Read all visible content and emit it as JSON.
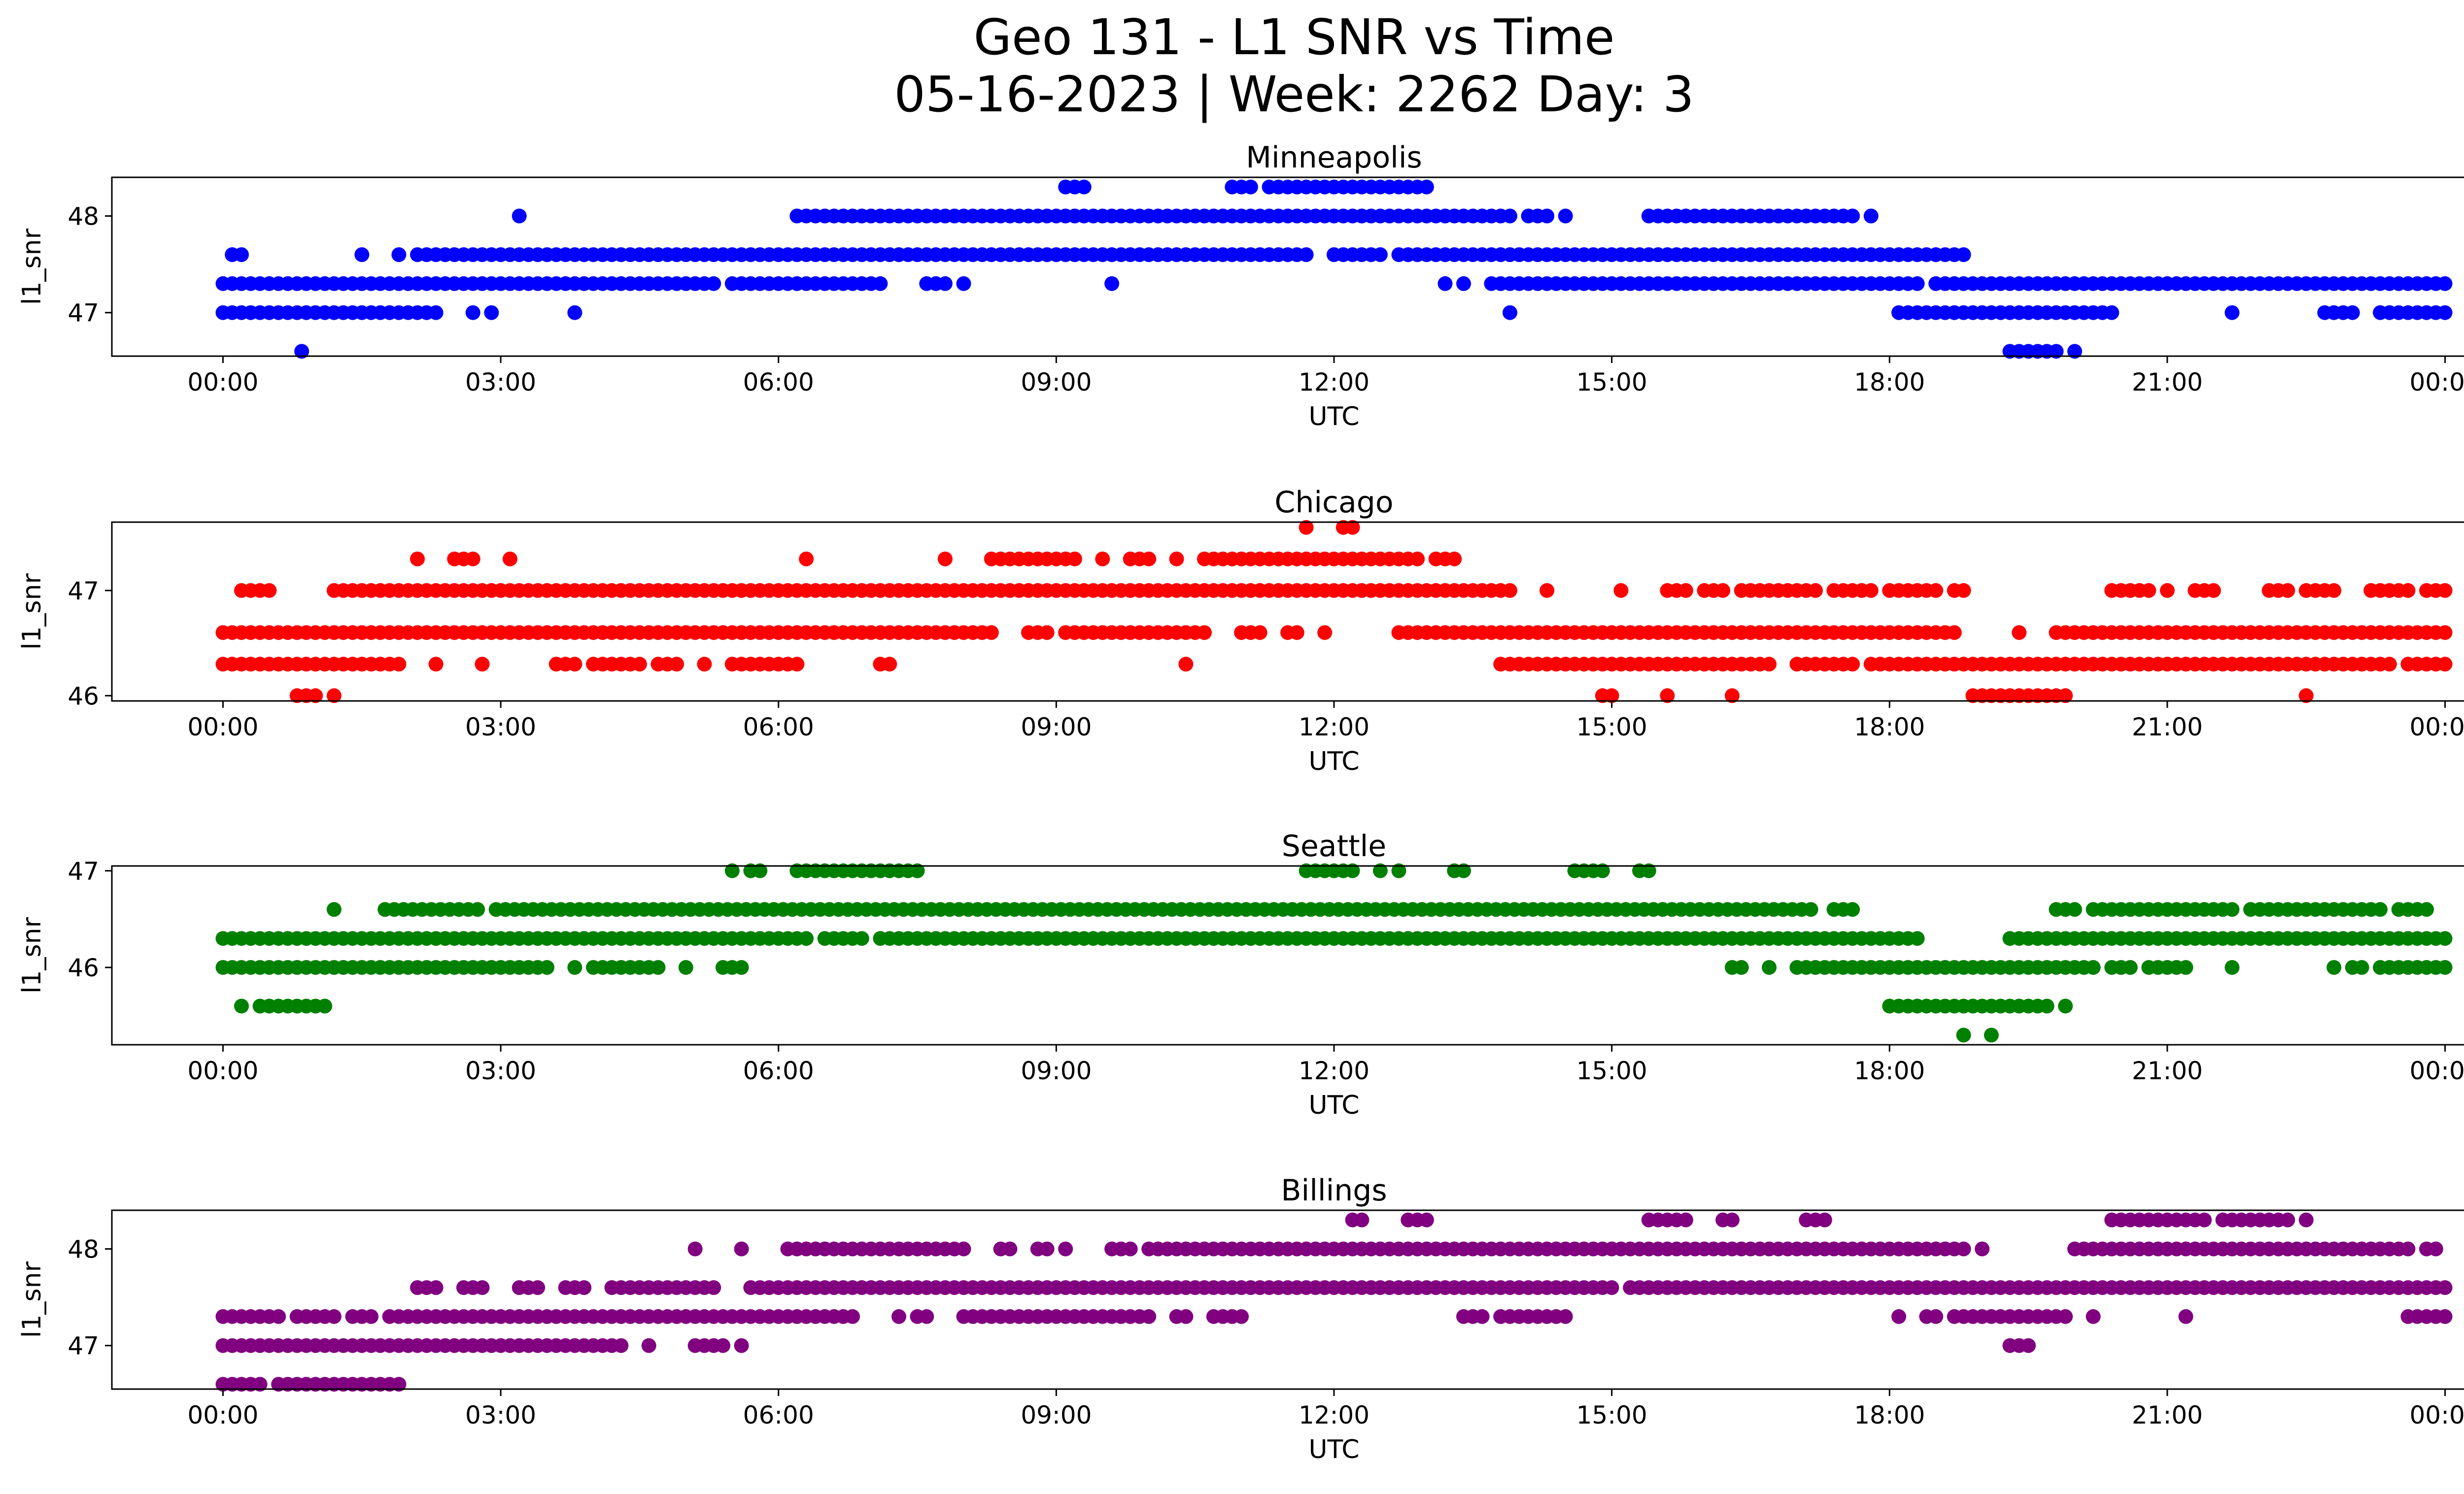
{
  "title_line1": "Geo 131 - L1 SNR vs Time",
  "title_line2": "05-16-2023 | Week: 2262 Day: 3",
  "chart_data": [
    {
      "type": "scatter",
      "title": "Minneapolis",
      "xlabel": "UTC",
      "ylabel": "l1_snr",
      "color": "#0000ff",
      "xticks": [
        "00:00",
        "03:00",
        "06:00",
        "09:00",
        "12:00",
        "15:00",
        "18:00",
        "21:00",
        "00:00"
      ],
      "yticks": [
        47,
        48
      ],
      "xlim": [
        -1.2,
        25.2
      ],
      "ylim": [
        46.55,
        48.4
      ],
      "levels": [
        {
          "y": 48.3,
          "ranges": [
            [
              9.1,
              9.3
            ],
            [
              10.9,
              11.1
            ],
            [
              11.3,
              11.5
            ],
            [
              11.6,
              13.0
            ]
          ]
        },
        {
          "y": 48.0,
          "ranges": [
            [
              3.2,
              3.2
            ],
            [
              6.2,
              13.9
            ],
            [
              14.1,
              14.3
            ],
            [
              14.5,
              14.5
            ],
            [
              15.4,
              16.6
            ],
            [
              16.7,
              17.6
            ],
            [
              17.8,
              17.8
            ]
          ]
        },
        {
          "y": 47.6,
          "ranges": [
            [
              0.1,
              0.25
            ],
            [
              1.5,
              1.5
            ],
            [
              1.9,
              1.9
            ],
            [
              2.1,
              11.7
            ],
            [
              12.0,
              12.5
            ],
            [
              12.7,
              17.4
            ],
            [
              17.5,
              18.8
            ]
          ]
        },
        {
          "y": 47.3,
          "ranges": [
            [
              0.0,
              5.3
            ],
            [
              5.5,
              7.1
            ],
            [
              7.6,
              7.8
            ],
            [
              8.0,
              8.0
            ],
            [
              9.6,
              9.6
            ],
            [
              13.2,
              13.2
            ],
            [
              13.4,
              13.4
            ],
            [
              13.7,
              18.3
            ],
            [
              18.5,
              24.0
            ]
          ]
        },
        {
          "y": 47.0,
          "ranges": [
            [
              0.0,
              2.3
            ],
            [
              2.7,
              2.7
            ],
            [
              2.9,
              2.9
            ],
            [
              3.8,
              3.8
            ],
            [
              13.9,
              13.9
            ],
            [
              18.1,
              20.4
            ],
            [
              21.7,
              21.7
            ],
            [
              22.7,
              23.0
            ],
            [
              23.3,
              24.0
            ]
          ]
        },
        {
          "y": 46.6,
          "ranges": [
            [
              0.85,
              0.85
            ],
            [
              19.3,
              19.8
            ],
            [
              20.0,
              20.0
            ]
          ]
        }
      ]
    },
    {
      "type": "scatter",
      "title": "Chicago",
      "xlabel": "UTC",
      "ylabel": "l1_snr",
      "color": "#ff0000",
      "xticks": [
        "00:00",
        "03:00",
        "06:00",
        "09:00",
        "12:00",
        "15:00",
        "18:00",
        "21:00",
        "00:00"
      ],
      "yticks": [
        46,
        47
      ],
      "xlim": [
        -1.2,
        25.2
      ],
      "ylim": [
        45.95,
        47.65
      ],
      "levels": [
        {
          "y": 47.6,
          "ranges": [
            [
              11.7,
              11.7
            ],
            [
              12.1,
              12.2
            ]
          ]
        },
        {
          "y": 47.3,
          "ranges": [
            [
              2.1,
              2.1
            ],
            [
              2.5,
              2.7
            ],
            [
              3.1,
              3.1
            ],
            [
              6.3,
              6.3
            ],
            [
              7.8,
              7.8
            ],
            [
              8.3,
              9.2
            ],
            [
              9.5,
              9.5
            ],
            [
              9.8,
              10.0
            ],
            [
              10.3,
              10.3
            ],
            [
              10.6,
              12.9
            ],
            [
              13.1,
              13.3
            ]
          ]
        },
        {
          "y": 47.0,
          "ranges": [
            [
              0.2,
              0.5
            ],
            [
              1.2,
              1.8
            ],
            [
              1.9,
              13.9
            ],
            [
              14.3,
              14.3
            ],
            [
              15.1,
              15.1
            ],
            [
              15.6,
              15.8
            ],
            [
              16.0,
              16.2
            ],
            [
              16.4,
              17.2
            ],
            [
              17.4,
              17.8
            ],
            [
              18.0,
              18.5
            ],
            [
              18.7,
              18.8
            ],
            [
              20.4,
              20.8
            ],
            [
              21.0,
              21.0
            ],
            [
              21.3,
              21.5
            ],
            [
              22.1,
              22.3
            ],
            [
              22.5,
              22.8
            ],
            [
              23.2,
              23.6
            ],
            [
              23.8,
              24.0
            ]
          ]
        },
        {
          "y": 46.6,
          "ranges": [
            [
              0.0,
              8.3
            ],
            [
              8.7,
              8.9
            ],
            [
              9.1,
              10.6
            ],
            [
              11.0,
              11.2
            ],
            [
              11.5,
              11.6
            ],
            [
              11.9,
              11.9
            ],
            [
              12.7,
              18.7
            ],
            [
              19.4,
              19.4
            ],
            [
              19.8,
              24.0
            ]
          ]
        },
        {
          "y": 46.3,
          "ranges": [
            [
              0.0,
              1.5
            ],
            [
              1.6,
              1.9
            ],
            [
              2.3,
              2.3
            ],
            [
              2.8,
              2.8
            ],
            [
              3.6,
              3.8
            ],
            [
              4.0,
              4.5
            ],
            [
              4.7,
              4.9
            ],
            [
              5.2,
              5.2
            ],
            [
              5.5,
              6.0
            ],
            [
              6.1,
              6.2
            ],
            [
              7.1,
              7.2
            ],
            [
              10.4,
              10.4
            ],
            [
              13.8,
              16.7
            ],
            [
              17.0,
              17.6
            ],
            [
              17.8,
              23.4
            ],
            [
              23.6,
              24.0
            ]
          ]
        },
        {
          "y": 46.0,
          "ranges": [
            [
              0.8,
              1.0
            ],
            [
              1.2,
              1.2
            ],
            [
              14.9,
              15.0
            ],
            [
              15.6,
              15.6
            ],
            [
              16.3,
              16.3
            ],
            [
              18.9,
              19.9
            ],
            [
              22.5,
              22.5
            ]
          ]
        }
      ]
    },
    {
      "type": "scatter",
      "title": "Seattle",
      "xlabel": "UTC",
      "ylabel": "l1_snr",
      "color": "#008000",
      "xticks": [
        "00:00",
        "03:00",
        "06:00",
        "09:00",
        "12:00",
        "15:00",
        "18:00",
        "21:00",
        "00:00"
      ],
      "yticks": [
        46,
        47
      ],
      "xlim": [
        -1.2,
        25.2
      ],
      "ylim": [
        45.2,
        47.05
      ],
      "levels": [
        {
          "y": 47.0,
          "ranges": [
            [
              5.5,
              5.5
            ],
            [
              5.7,
              5.8
            ],
            [
              6.2,
              7.5
            ],
            [
              11.7,
              12.2
            ],
            [
              12.5,
              12.5
            ],
            [
              12.7,
              12.7
            ],
            [
              13.3,
              13.4
            ],
            [
              14.6,
              14.9
            ],
            [
              15.3,
              15.4
            ]
          ]
        },
        {
          "y": 46.6,
          "ranges": [
            [
              1.2,
              1.2
            ],
            [
              1.75,
              2.8
            ],
            [
              2.95,
              17.2
            ],
            [
              17.4,
              17.6
            ],
            [
              19.8,
              20.0
            ],
            [
              20.2,
              21.7
            ],
            [
              21.9,
              23.3
            ],
            [
              23.5,
              23.8
            ]
          ]
        },
        {
          "y": 46.3,
          "ranges": [
            [
              0.0,
              6.3
            ],
            [
              6.5,
              6.9
            ],
            [
              7.1,
              18.3
            ],
            [
              19.3,
              24.0
            ]
          ]
        },
        {
          "y": 46.0,
          "ranges": [
            [
              0.0,
              3.5
            ],
            [
              3.8,
              3.8
            ],
            [
              4.0,
              4.7
            ],
            [
              5.0,
              5.0
            ],
            [
              5.4,
              5.6
            ],
            [
              16.3,
              16.4
            ],
            [
              16.7,
              16.7
            ],
            [
              17.0,
              20.2
            ],
            [
              20.4,
              20.6
            ],
            [
              20.8,
              21.2
            ],
            [
              21.7,
              21.7
            ],
            [
              22.8,
              22.8
            ],
            [
              23.0,
              23.1
            ],
            [
              23.3,
              24.0
            ]
          ]
        },
        {
          "y": 45.6,
          "ranges": [
            [
              0.2,
              0.2
            ],
            [
              0.4,
              1.1
            ],
            [
              18.0,
              19.7
            ],
            [
              19.9,
              19.9
            ]
          ]
        },
        {
          "y": 45.3,
          "ranges": [
            [
              18.8,
              18.8
            ],
            [
              19.1,
              19.1
            ]
          ]
        }
      ]
    },
    {
      "type": "scatter",
      "title": "Billings",
      "xlabel": "UTC",
      "ylabel": "l1_snr",
      "color": "#800080",
      "xticks": [
        "00:00",
        "03:00",
        "06:00",
        "09:00",
        "12:00",
        "15:00",
        "18:00",
        "21:00",
        "00:00"
      ],
      "yticks": [
        47,
        48
      ],
      "xlim": [
        -1.2,
        25.2
      ],
      "ylim": [
        46.55,
        48.4
      ],
      "levels": [
        {
          "y": 48.3,
          "ranges": [
            [
              12.2,
              12.3
            ],
            [
              12.8,
              13.0
            ],
            [
              15.4,
              15.8
            ],
            [
              16.2,
              16.3
            ],
            [
              17.1,
              17.3
            ],
            [
              20.4,
              20.7
            ],
            [
              20.8,
              21.1
            ],
            [
              21.2,
              21.4
            ],
            [
              21.6,
              22.3
            ],
            [
              22.5,
              22.5
            ]
          ]
        },
        {
          "y": 48.0,
          "ranges": [
            [
              5.1,
              5.1
            ],
            [
              5.6,
              5.6
            ],
            [
              6.1,
              8.0
            ],
            [
              8.4,
              8.5
            ],
            [
              8.8,
              8.9
            ],
            [
              9.1,
              9.1
            ],
            [
              9.6,
              9.8
            ],
            [
              10.0,
              14.1
            ],
            [
              14.2,
              18.8
            ],
            [
              19.0,
              19.0
            ],
            [
              20.0,
              23.6
            ],
            [
              23.8,
              23.9
            ]
          ]
        },
        {
          "y": 47.6,
          "ranges": [
            [
              2.1,
              2.3
            ],
            [
              2.6,
              2.8
            ],
            [
              3.2,
              3.4
            ],
            [
              3.7,
              3.9
            ],
            [
              4.2,
              5.3
            ],
            [
              5.7,
              15.0
            ],
            [
              15.2,
              24.0
            ]
          ]
        },
        {
          "y": 47.3,
          "ranges": [
            [
              0.0,
              0.6
            ],
            [
              0.8,
              1.2
            ],
            [
              1.4,
              1.6
            ],
            [
              1.8,
              6.8
            ],
            [
              7.3,
              7.3
            ],
            [
              7.5,
              7.6
            ],
            [
              8.0,
              10.0
            ],
            [
              10.3,
              10.4
            ],
            [
              10.7,
              11.0
            ],
            [
              13.4,
              13.6
            ],
            [
              13.8,
              14.5
            ],
            [
              18.1,
              18.1
            ],
            [
              18.4,
              18.5
            ],
            [
              18.7,
              18.9
            ],
            [
              19.0,
              19.9
            ],
            [
              20.2,
              20.2
            ],
            [
              21.2,
              21.2
            ],
            [
              23.6,
              24.0
            ]
          ]
        },
        {
          "y": 47.0,
          "ranges": [
            [
              0.0,
              4.3
            ],
            [
              4.6,
              4.6
            ],
            [
              5.1,
              5.4
            ],
            [
              5.6,
              5.6
            ],
            [
              19.3,
              19.5
            ]
          ]
        },
        {
          "y": 46.6,
          "ranges": [
            [
              0.0,
              0.4
            ],
            [
              0.6,
              0.8
            ],
            [
              0.9,
              1.6
            ],
            [
              1.7,
              1.9
            ]
          ]
        }
      ]
    }
  ]
}
